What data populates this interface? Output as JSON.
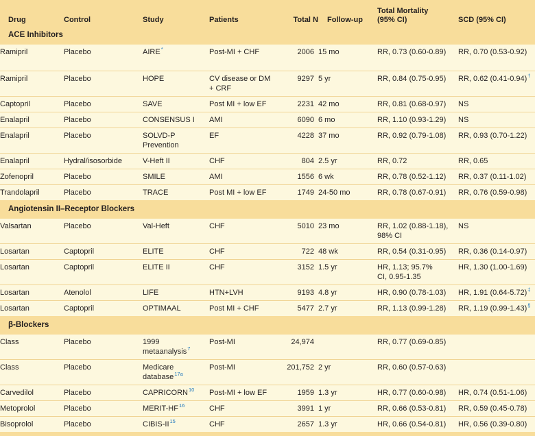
{
  "colors": {
    "header_background": "#F8DD9B",
    "row_background": "#FDF8DE",
    "row_divider": "#F0D494",
    "reference_blue": "#1B75BC",
    "text": "#231F20"
  },
  "columns": [
    {
      "id": "drug",
      "label": "Drug"
    },
    {
      "id": "control",
      "label": "Control"
    },
    {
      "id": "study",
      "label": "Study"
    },
    {
      "id": "patients",
      "label": "Patients"
    },
    {
      "id": "total_n",
      "label": "Total N"
    },
    {
      "id": "follow_up",
      "label": "Follow-up"
    },
    {
      "id": "mortality",
      "label": "Total Mortality\n(95% CI)"
    },
    {
      "id": "scd",
      "label": "SCD (95% CI)"
    }
  ],
  "sections": [
    {
      "title": "ACE Inhibitors",
      "rows": [
        {
          "drug": "Ramipril",
          "control": "Placebo",
          "study": "AIRE",
          "study_sup": "*",
          "patients": "Post-MI + CHF",
          "total_n": "2006",
          "follow_up": "15 mo",
          "mortality": "RR, 0.73 (0.60-0.89)",
          "scd": "RR, 0.70 (0.53-0.92)"
        },
        {
          "drug": "Ramipril",
          "control": "Placebo",
          "study": "HOPE",
          "patients": "CV disease or DM\n+ CRF",
          "total_n": "9297",
          "follow_up": "5 yr",
          "mortality": "RR, 0.84 (0.75-0.95)",
          "scd": "RR, 0.62 (0.41-0.94)",
          "scd_sup": "†"
        },
        {
          "drug": "Captopril",
          "control": "Placebo",
          "study": "SAVE",
          "patients": "Post MI + low EF",
          "total_n": "2231",
          "follow_up": "42 mo",
          "mortality": "RR, 0.81 (0.68-0.97)",
          "scd": "NS"
        },
        {
          "drug": "Enalapril",
          "control": "Placebo",
          "study": "CONSENSUS I",
          "patients": "AMI",
          "total_n": "6090",
          "follow_up": "6 mo",
          "mortality": "RR, 1.10 (0.93-1.29)",
          "scd": "NS"
        },
        {
          "drug": "Enalapril",
          "control": "Placebo",
          "study": "SOLVD-P\nPrevention",
          "patients": "EF",
          "total_n": "4228",
          "follow_up": "37 mo",
          "mortality": "RR, 0.92 (0.79-1.08)",
          "scd": "RR, 0.93 (0.70-1.22)"
        },
        {
          "drug": "Enalapril",
          "control": "Hydral/isosorbide",
          "study": "V-Heft II",
          "patients": "CHF",
          "total_n": "804",
          "follow_up": "2.5 yr",
          "mortality": "RR, 0.72",
          "scd": "RR, 0.65"
        },
        {
          "drug": "Zofenopril",
          "control": "Placebo",
          "study": "SMILE",
          "patients": "AMI",
          "total_n": "1556",
          "follow_up": "6 wk",
          "mortality": "RR, 0.78 (0.52-1.12)",
          "scd": "RR, 0.37 (0.11-1.02)"
        },
        {
          "drug": "Trandolapril",
          "control": "Placebo",
          "study": "TRACE",
          "patients": "Post MI + low EF",
          "total_n": "1749",
          "follow_up": "24-50 mo",
          "mortality": "RR, 0.78 (0.67-0.91)",
          "scd": "RR, 0.76 (0.59-0.98)"
        }
      ]
    },
    {
      "title": "Angiotensin II–Receptor Blockers",
      "rows": [
        {
          "drug": "Valsartan",
          "control": "Placebo",
          "study": "Val-Heft",
          "patients": "CHF",
          "total_n": "5010",
          "follow_up": "23 mo",
          "mortality": "RR, 1.02 (0.88-1.18),\n98% CI",
          "scd": "NS"
        },
        {
          "drug": "Losartan",
          "control": "Captopril",
          "study": "ELITE",
          "patients": "CHF",
          "total_n": "722",
          "follow_up": "48 wk",
          "mortality": "RR, 0.54 (0.31-0.95)",
          "scd": "RR, 0.36 (0.14-0.97)"
        },
        {
          "drug": "Losartan",
          "control": "Captopril",
          "study": "ELITE II",
          "patients": "CHF",
          "total_n": "3152",
          "follow_up": "1.5 yr",
          "mortality": "HR, 1.13; 95.7%\nCI, 0.95-1.35",
          "scd": "HR, 1.30 (1.00-1.69)"
        },
        {
          "drug": "Losartan",
          "control": "Atenolol",
          "study": "LIFE",
          "patients": "HTN+LVH",
          "total_n": "9193",
          "follow_up": "4.8 yr",
          "mortality": "HR, 0.90 (0.78-1.03)",
          "scd": "HR, 1.91 (0.64-5.72)",
          "scd_sup": "‡"
        },
        {
          "drug": "Losartan",
          "control": "Captopril",
          "study": "OPTIMAAL",
          "patients": "Post MI + CHF",
          "total_n": "5477",
          "follow_up": "2.7 yr",
          "mortality": "RR, 1.13 (0.99-1.28)",
          "scd": "RR, 1.19 (0.99-1.43)",
          "scd_sup": "§"
        }
      ]
    },
    {
      "title": "β-Blockers",
      "rows": [
        {
          "drug": "Class",
          "control": "Placebo",
          "study": "1999\nmetaanalysis",
          "study_sup": "7",
          "patients": "Post-MI",
          "total_n": "24,974",
          "follow_up": "",
          "mortality": "RR, 0.77 (0.69-0.85)",
          "scd": ""
        },
        {
          "drug": "Class",
          "control": "Placebo",
          "study": "Medicare\ndatabase",
          "study_sup": "17a",
          "patients": "Post-MI",
          "total_n": "201,752",
          "follow_up": "2 yr",
          "mortality": "RR, 0.60 (0.57-0.63)",
          "scd": ""
        },
        {
          "drug": "Carvedilol",
          "control": "Placebo",
          "study": "CAPRICORN",
          "study_sup": "10",
          "patients": "Post-MI + low EF",
          "total_n": "1959",
          "follow_up": "1.3 yr",
          "mortality": "HR, 0.77 (0.60-0.98)",
          "scd": "HR, 0.74 (0.51-1.06)"
        },
        {
          "drug": "Metoprolol",
          "control": "Placebo",
          "study": "MERIT-HF",
          "study_sup": "16",
          "patients": "CHF",
          "total_n": "3991",
          "follow_up": "1 yr",
          "mortality": "RR, 0.66 (0.53-0.81)",
          "scd": "RR, 0.59 (0.45-0.78)"
        },
        {
          "drug": "Bisoprolol",
          "control": "Placebo",
          "study": "CIBIS-II",
          "study_sup": "15",
          "patients": "CHF",
          "total_n": "2657",
          "follow_up": "1.3 yr",
          "mortality": "HR, 0.66 (0.54-0.81)",
          "scd": "HR, 0.56 (0.39-0.80)"
        }
      ]
    }
  ]
}
